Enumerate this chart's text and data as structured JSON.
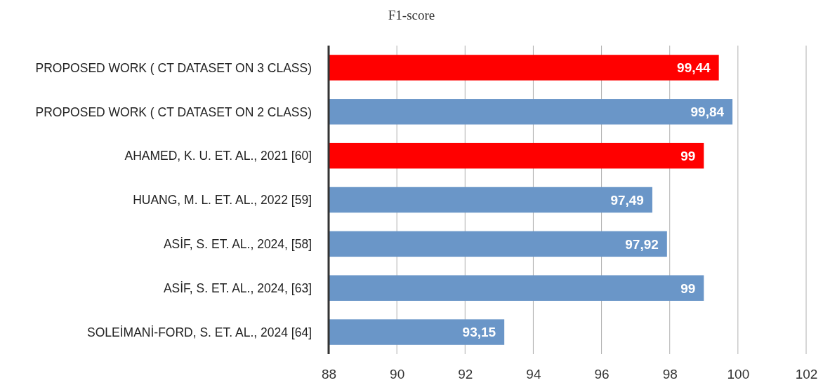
{
  "chart_data": {
    "type": "bar",
    "orientation": "horizontal",
    "title": "F1-score",
    "categories": [
      "PROPOSED WORK ( CT DATASET ON 3 CLASS)",
      "PROPOSED WORK ( CT DATASET ON 2 CLASS)",
      "AHAMED, K. U. ET. AL., 2021 [60]",
      "HUANG, M. L. ET. AL., 2022 [59]",
      "ASİF, S. ET. AL., 2024, [58]",
      "ASİF, S. ET. AL., 2024, [63]",
      "SOLEİMANİ-FORD, S. ET. AL., 2024 [64]"
    ],
    "values": [
      99.44,
      99.84,
      99,
      97.49,
      97.92,
      99,
      93.15
    ],
    "value_labels": [
      "99,44",
      "99,84",
      "99",
      "97,49",
      "97,92",
      "99",
      "93,15"
    ],
    "colors": [
      "#ff0000",
      "#6a96c8",
      "#ff0000",
      "#6a96c8",
      "#6a96c8",
      "#6a96c8",
      "#6a96c8"
    ],
    "xlim": [
      88,
      102
    ],
    "xticks": [
      88,
      90,
      92,
      94,
      96,
      98,
      100,
      102
    ],
    "grid": "x"
  }
}
